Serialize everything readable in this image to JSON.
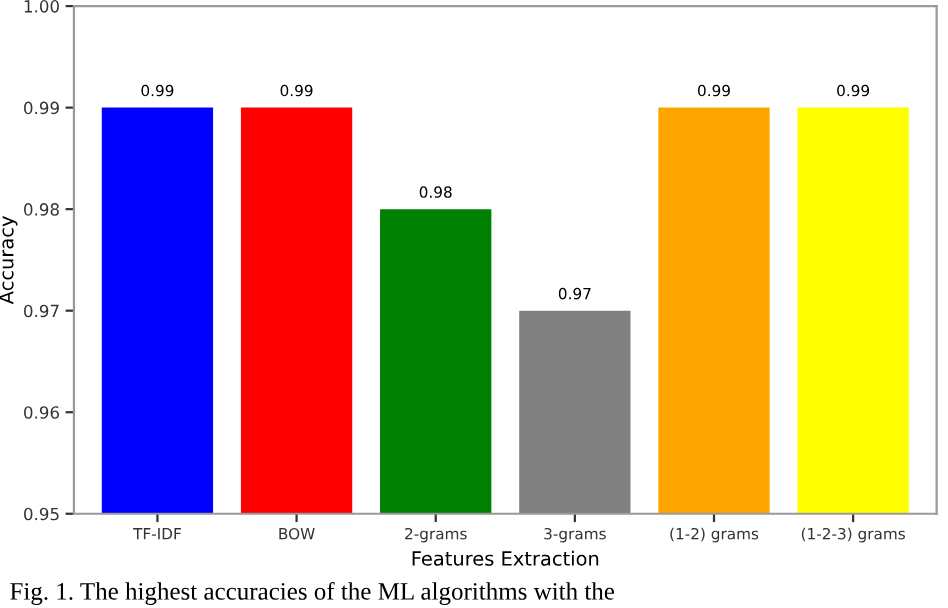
{
  "chart_data": {
    "type": "bar",
    "xlabel": "Features Extraction",
    "ylabel": "Accuracy",
    "categories": [
      "TF-IDF",
      "BOW",
      "2-grams",
      "3-grams",
      "(1-2) grams",
      "(1-2-3) grams"
    ],
    "values": [
      0.99,
      0.99,
      0.98,
      0.97,
      0.99,
      0.99
    ],
    "colors": [
      "#0000ff",
      "#ff0000",
      "#008000",
      "#808080",
      "#ffa500",
      "#ffff00"
    ],
    "ylim": [
      0.95,
      1.0
    ],
    "yticks": [
      0.95,
      0.96,
      0.97,
      0.98,
      0.99,
      {
        "value": 1.0,
        "label": "1.00"
      }
    ],
    "data_labels": true,
    "grid": false,
    "legend": false,
    "annotations": [
      "Fig. 1. The highest accuracies of the ML algorithms with the"
    ]
  }
}
